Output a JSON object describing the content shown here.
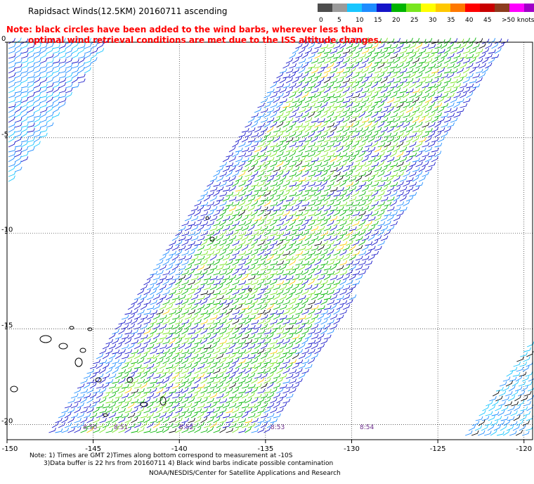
{
  "header": {
    "title": "Rapidsact Winds(12.5KM) 20160711 ascending",
    "note_line1": "Note: black circles have been added to the wind barbs, wherever less than",
    "note_line2": "optimal wind retrieval conditions are met due to the ISS altitude changes."
  },
  "legend": {
    "labels": [
      "0",
      "5",
      "10",
      "15",
      "20",
      "25",
      "30",
      "35",
      "40",
      "45",
      ">50 knots"
    ],
    "colors": [
      "#4d4d4d",
      "#9a9a9a",
      "#18c6ff",
      "#1e8cff",
      "#1414c8",
      "#00b400",
      "#78e61e",
      "#ffff00",
      "#ffc800",
      "#ff7800",
      "#ff0000",
      "#c80000",
      "#8c3c1e",
      "#ff00ff",
      "#a000c8",
      "#50009a"
    ]
  },
  "axes": {
    "x_ticks": [
      "-150",
      "-145",
      "-140",
      "-135",
      "-130",
      "-125",
      "-120"
    ],
    "y_ticks": [
      "0",
      "-5",
      "-10",
      "-15",
      "-20"
    ]
  },
  "time_labels": [
    "8:50",
    "8:51",
    "8:52",
    "8:53",
    "8:54"
  ],
  "footer": {
    "line1": "Note: 1) Times are GMT 2)Times along bottom correspond to measurement at -10S",
    "line2": "3)Data buffer is 22 hrs from 20160711 4) Black wind barbs indicate possible contamination",
    "line3": "NOAA/NESDIS/Center for Satellite Applications and Research"
  }
}
